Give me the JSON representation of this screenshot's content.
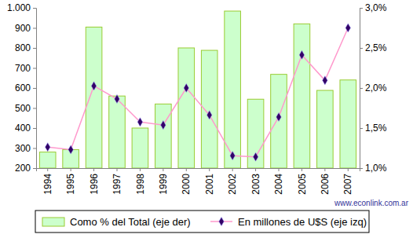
{
  "chart_data": {
    "type": "bar",
    "categories": [
      "1994",
      "1995",
      "1996",
      "1997",
      "1998",
      "1999",
      "2000",
      "2001",
      "2002",
      "2003",
      "2004",
      "2005",
      "2006",
      "2007"
    ],
    "series": [
      {
        "name": "Como % del Total (eje der)",
        "type": "bar",
        "axis": "y2",
        "color": "#ccffcc",
        "values": [
          1.2,
          1.23,
          2.76,
          1.9,
          1.5,
          1.8,
          2.5,
          2.47,
          2.96,
          1.86,
          2.17,
          2.8,
          1.97,
          2.1
        ]
      },
      {
        "name": "En millones de U$S (eje izq)",
        "type": "line",
        "color": "#ff99cc",
        "marker": "diamond",
        "values": [
          305,
          292,
          610,
          545,
          430,
          415,
          600,
          465,
          262,
          256,
          455,
          765,
          638,
          900
        ]
      }
    ],
    "ylim": [
      200,
      1000
    ],
    "yticks": [
      200,
      300,
      400,
      500,
      600,
      700,
      800,
      900,
      {
        "value": 1000,
        "label": "1.000"
      }
    ],
    "y2lim": [
      1.0,
      3.0
    ],
    "y2ticks": [
      {
        "value": 1.0,
        "label": "1,0%"
      },
      {
        "value": 1.5,
        "label": "1,5%"
      },
      {
        "value": 2.0,
        "label": "2,0%"
      },
      {
        "value": 2.5,
        "label": "2,5%"
      },
      {
        "value": 3.0,
        "label": "3,0%"
      }
    ],
    "legend": "bottom",
    "grid": false,
    "annotations": [
      "www.econlink.com.ar"
    ]
  }
}
